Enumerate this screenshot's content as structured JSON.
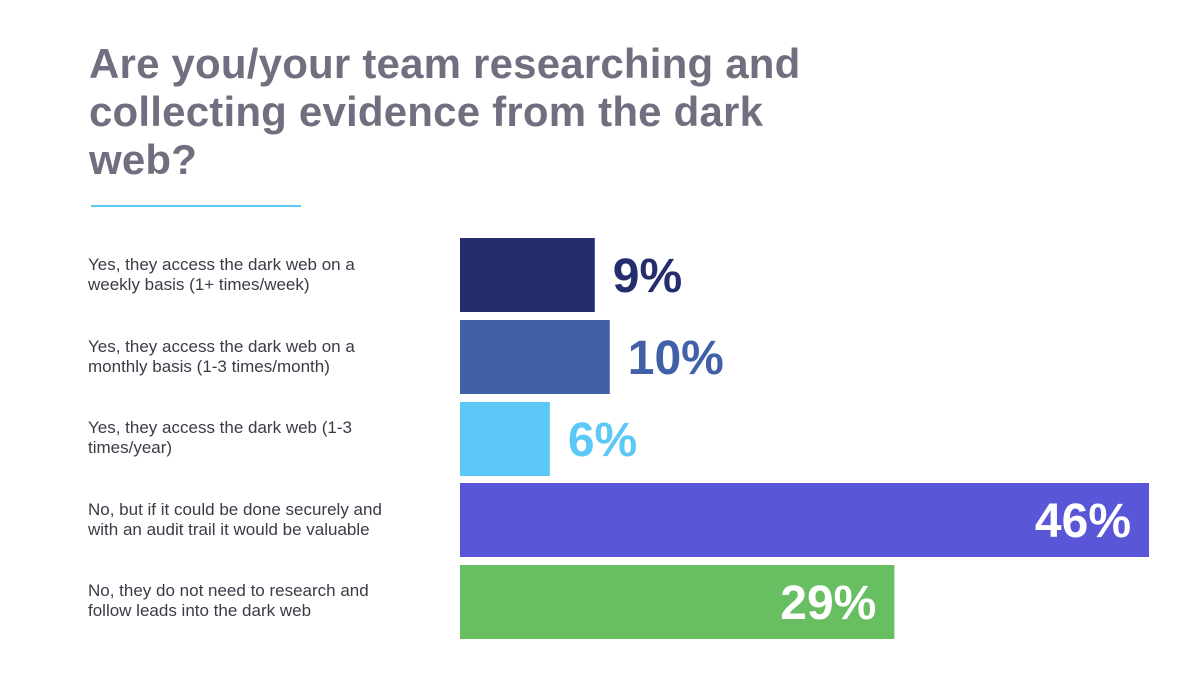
{
  "chart_data": {
    "type": "bar",
    "orientation": "horizontal",
    "title": "Are you/your team researching and collecting evidence from the dark web?",
    "categories": [
      "Yes, they access the dark web on a weekly basis (1+ times/week)",
      "Yes, they access the dark web on a monthly basis (1-3 times/month)",
      "Yes, they access the dark web (1-3 times/year)",
      "No, but if it could be done securely and with an audit trail it would be valuable",
      "No, they do not need to research and follow leads into the dark web"
    ],
    "category_lines": [
      [
        "Yes, they access the dark web on a",
        "weekly basis (1+ times/week)"
      ],
      [
        "Yes, they access the dark web on a",
        "monthly basis (1-3 times/month)"
      ],
      [
        "Yes, they access the dark web (1-3",
        "times/year)"
      ],
      [
        "No, but if it could be done securely and",
        "with an audit trail it would be valuable"
      ],
      [
        "No, they do not need to research and",
        "follow leads into the dark web"
      ]
    ],
    "values": [
      9,
      10,
      6,
      46,
      29
    ],
    "value_labels": [
      "9%",
      "10%",
      "6%",
      "46%",
      "29%"
    ],
    "unit": "%",
    "bar_colors": [
      "#252d6e",
      "#4060a8",
      "#5cc8f8",
      "#5957d7",
      "#67bf62"
    ],
    "value_label_colors": [
      "#252d6e",
      "#4060a8",
      "#5cc8f8",
      "#ffffff",
      "#ffffff"
    ],
    "value_label_position": [
      "outside",
      "outside",
      "outside",
      "inside",
      "inside"
    ],
    "xlim": [
      0,
      46
    ],
    "grid": false,
    "legend": "none"
  },
  "colors": {
    "title": "#6f6f7f",
    "title_rule": "#5ec8f5",
    "category_text": "#3b3b48"
  }
}
